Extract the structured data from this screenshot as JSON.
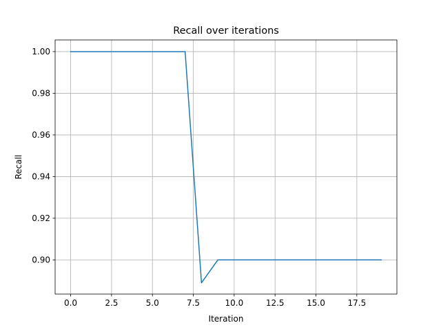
{
  "chart_data": {
    "type": "line",
    "title": "Recall over iterations",
    "xlabel": "Iteration",
    "ylabel": "Recall",
    "xlim": [
      -0.95,
      19.95
    ],
    "ylim": [
      0.8836,
      1.0056
    ],
    "xticks": [
      0.0,
      2.5,
      5.0,
      7.5,
      10.0,
      12.5,
      15.0,
      17.5
    ],
    "xtick_labels": [
      "0.0",
      "2.5",
      "5.0",
      "7.5",
      "10.0",
      "12.5",
      "15.0",
      "17.5"
    ],
    "yticks": [
      0.9,
      0.92,
      0.94,
      0.96,
      0.98,
      1.0
    ],
    "ytick_labels": [
      "0.90",
      "0.92",
      "0.94",
      "0.96",
      "0.98",
      "1.00"
    ],
    "grid": true,
    "series": [
      {
        "color": "#1f77b4",
        "x": [
          0,
          1,
          2,
          3,
          4,
          5,
          6,
          7,
          8,
          9,
          10,
          11,
          12,
          13,
          14,
          15,
          16,
          17,
          18,
          19
        ],
        "y": [
          1.0,
          1.0,
          1.0,
          1.0,
          1.0,
          1.0,
          1.0,
          1.0,
          0.889,
          0.9,
          0.9,
          0.9,
          0.9,
          0.9,
          0.9,
          0.9,
          0.9,
          0.9,
          0.9,
          0.9
        ]
      }
    ]
  }
}
